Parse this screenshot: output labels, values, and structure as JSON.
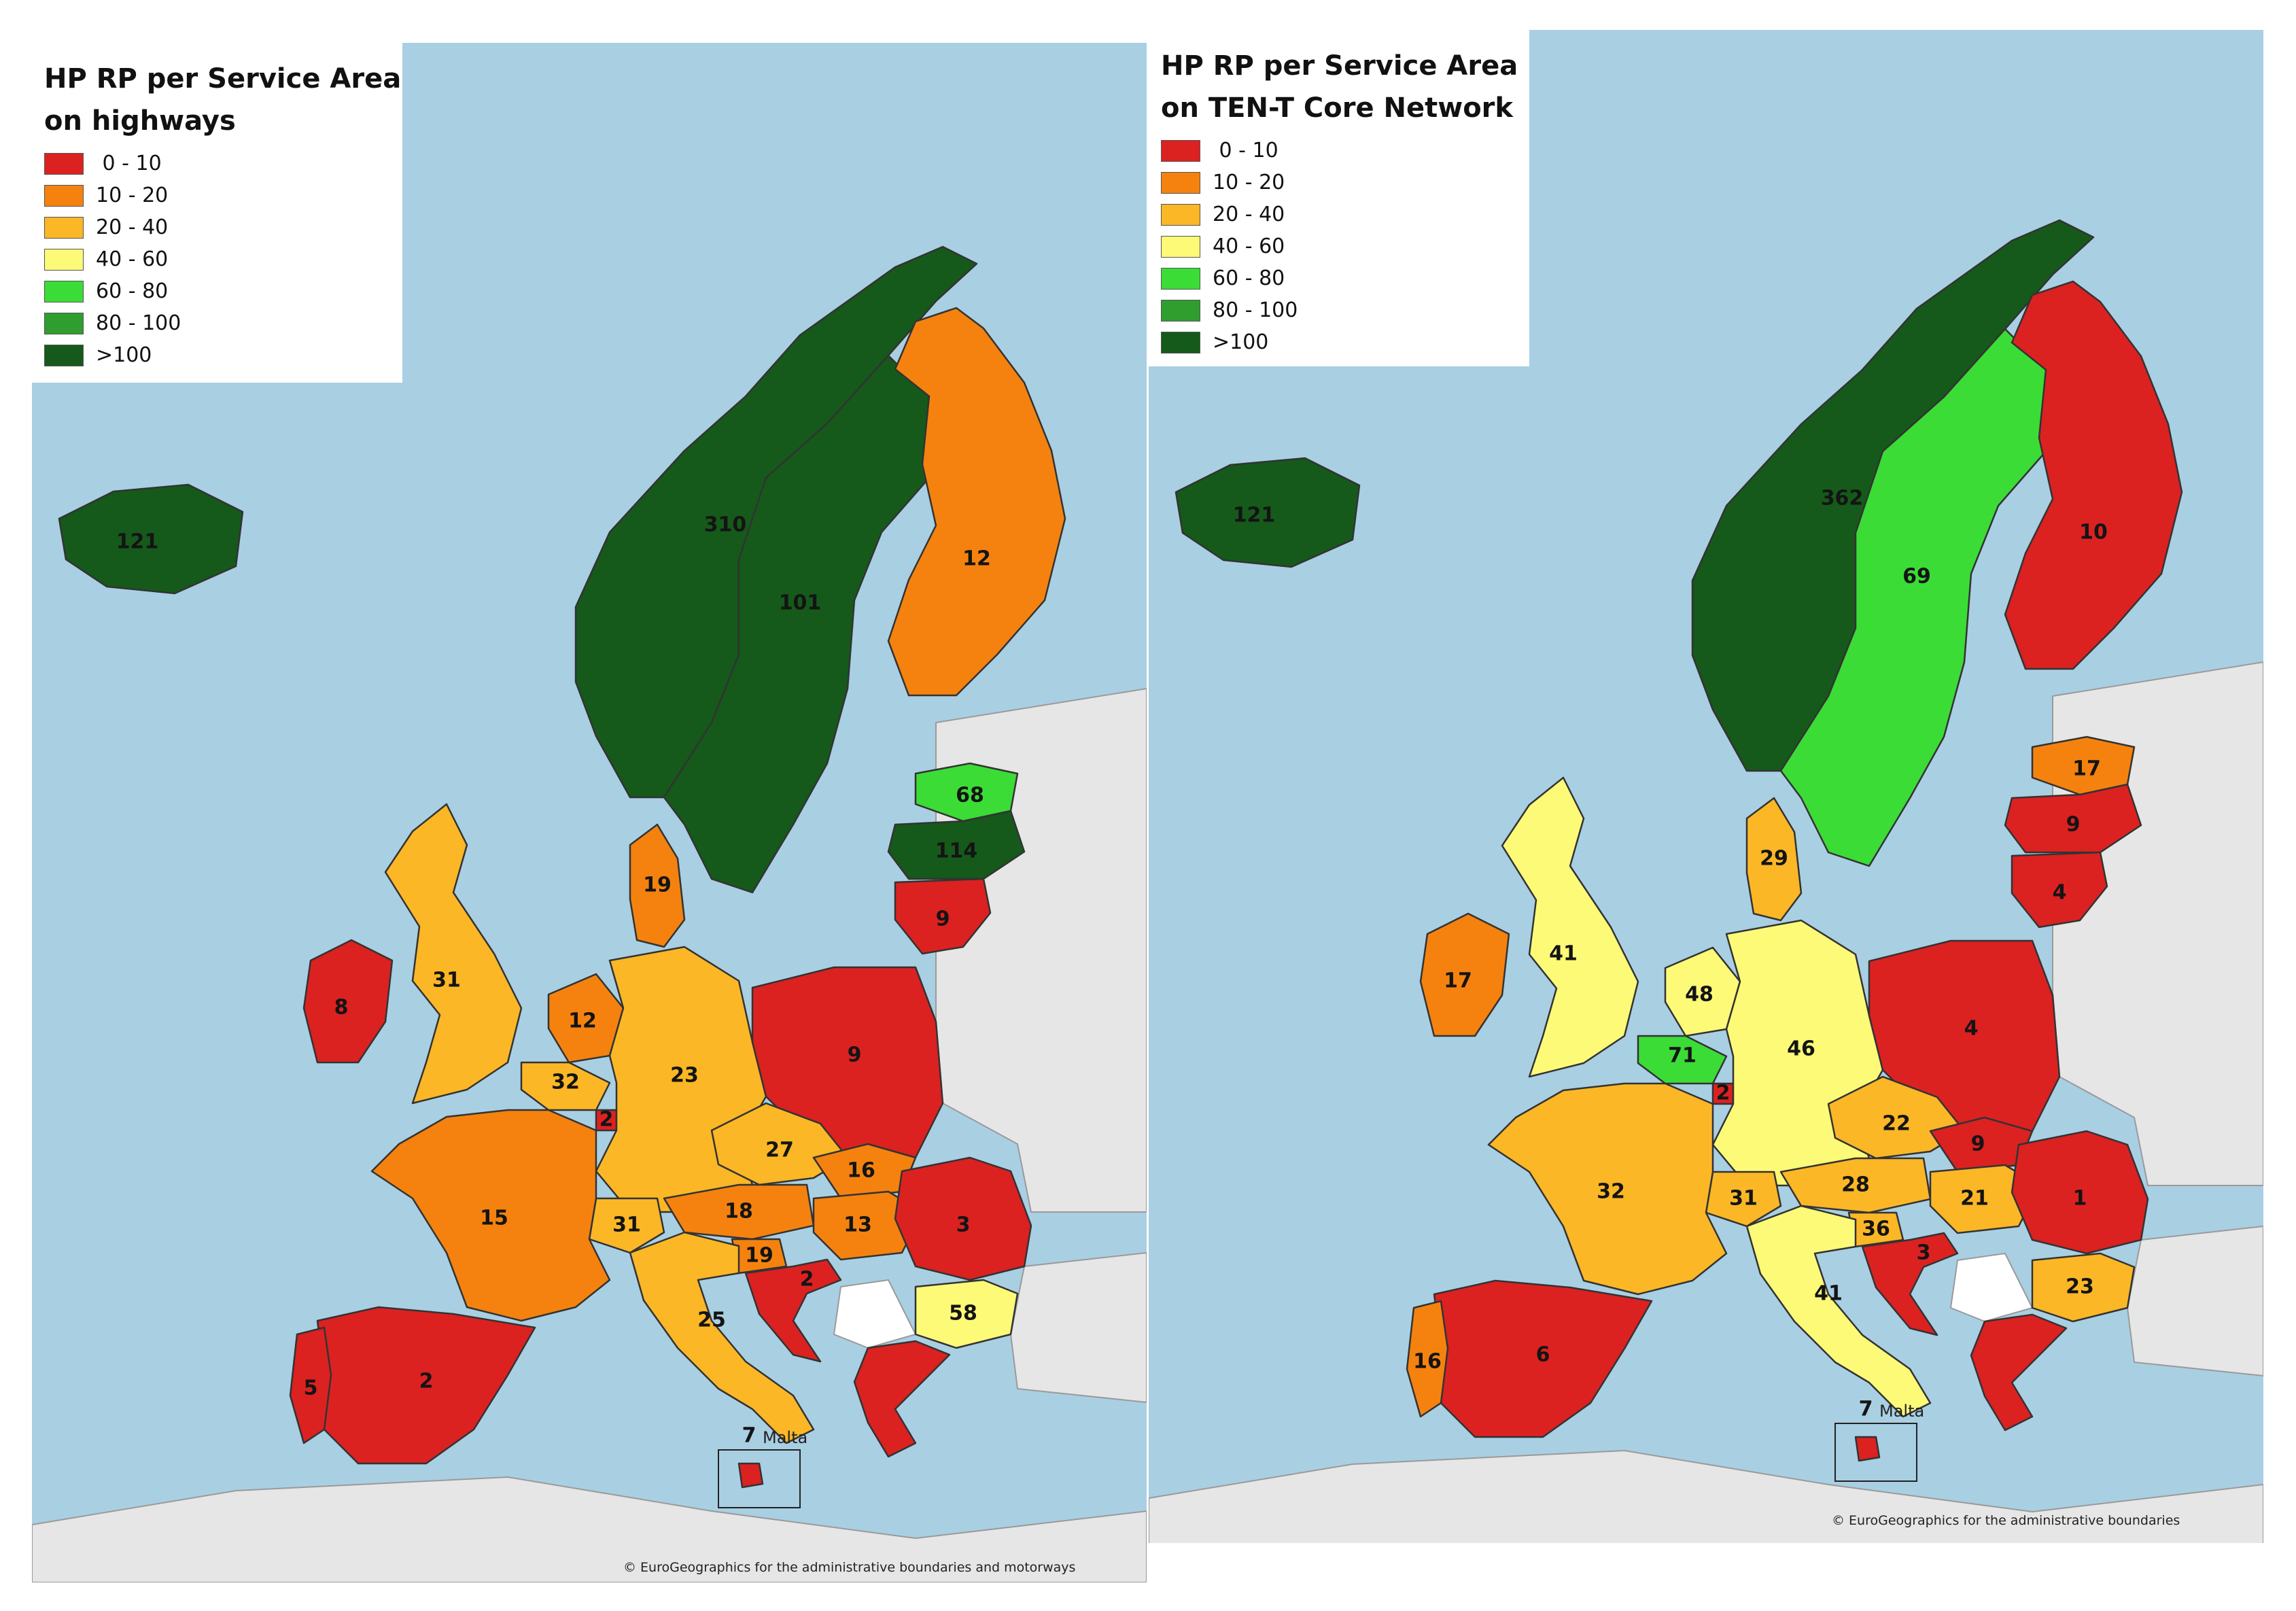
{
  "colors": {
    "c0_10": "#dc2121",
    "c10_20": "#f5820f",
    "c20_40": "#fbb726",
    "c40_60": "#fdfa78",
    "c60_80": "#3bdc36",
    "c80_100": "#2f9e2f",
    "c100": "#155a1a",
    "sea": "#a9cfe3",
    "nodata": "#ffffff",
    "other_land": "#ffffff"
  },
  "maps": [
    {
      "id": "highways",
      "legend": {
        "title_line1": "HP RP per Service Area",
        "title_line2": "on highways",
        "items": [
          {
            "label": " 0 - 10",
            "color": "#dc2121"
          },
          {
            "label": "10 - 20",
            "color": "#f5820f"
          },
          {
            "label": "20 - 40",
            "color": "#fbb726"
          },
          {
            "label": "40 - 60",
            "color": "#fdfa78"
          },
          {
            "label": "60 - 80",
            "color": "#3bdc36"
          },
          {
            "label": "80 - 100",
            "color": "#2f9e2f"
          },
          {
            "label": ">100",
            "color": "#155a1a"
          }
        ]
      },
      "countries": {
        "iceland": {
          "value": "121",
          "color": "#155a1a"
        },
        "norway": {
          "value": "310",
          "color": "#155a1a"
        },
        "sweden": {
          "value": "101",
          "color": "#155a1a"
        },
        "finland": {
          "value": "12",
          "color": "#f5820f"
        },
        "estonia": {
          "value": "68",
          "color": "#3bdc36"
        },
        "latvia": {
          "value": "114",
          "color": "#155a1a"
        },
        "lithuania": {
          "value": "9",
          "color": "#dc2121"
        },
        "denmark": {
          "value": "19",
          "color": "#f5820f"
        },
        "uk": {
          "value": "31",
          "color": "#fbb726"
        },
        "ireland": {
          "value": "8",
          "color": "#dc2121"
        },
        "netherlands": {
          "value": "12",
          "color": "#f5820f"
        },
        "belgium": {
          "value": "32",
          "color": "#fbb726"
        },
        "luxembourg": {
          "value": "2",
          "color": "#dc2121"
        },
        "germany": {
          "value": "23",
          "color": "#fbb726"
        },
        "poland": {
          "value": "9",
          "color": "#dc2121"
        },
        "czechia": {
          "value": "27",
          "color": "#fbb726"
        },
        "slovakia": {
          "value": "16",
          "color": "#f5820f"
        },
        "austria": {
          "value": "18",
          "color": "#f5820f"
        },
        "hungary": {
          "value": "13",
          "color": "#f5820f"
        },
        "slovenia": {
          "value": "19",
          "color": "#f5820f"
        },
        "croatia": {
          "value": "2",
          "color": "#dc2121"
        },
        "romania": {
          "value": "3",
          "color": "#dc2121"
        },
        "bulgaria": {
          "value": "58",
          "color": "#fdfa78"
        },
        "france": {
          "value": "15",
          "color": "#f5820f"
        },
        "switzerland": {
          "value": "31",
          "color": "#fbb726"
        },
        "italy": {
          "value": "25",
          "color": "#fbb726"
        },
        "spain": {
          "value": "2",
          "color": "#dc2121"
        },
        "portugal": {
          "value": "5",
          "color": "#dc2121"
        },
        "greece": {
          "value": "",
          "color": "#dc2121"
        },
        "malta": {
          "value": "7",
          "color": "#dc2121"
        }
      },
      "malta_label": "Malta",
      "copyright": "© EuroGeographics for the administrative boundaries and motorways"
    },
    {
      "id": "tent_core",
      "legend": {
        "title_line1": "HP RP per Service Area",
        "title_line2": "on TEN-T Core Network",
        "items": [
          {
            "label": " 0 - 10",
            "color": "#dc2121"
          },
          {
            "label": "10 - 20",
            "color": "#f5820f"
          },
          {
            "label": "20 - 40",
            "color": "#fbb726"
          },
          {
            "label": "40 - 60",
            "color": "#fdfa78"
          },
          {
            "label": "60 - 80",
            "color": "#3bdc36"
          },
          {
            "label": "80 - 100",
            "color": "#2f9e2f"
          },
          {
            "label": ">100",
            "color": "#155a1a"
          }
        ]
      },
      "countries": {
        "iceland": {
          "value": "121",
          "color": "#155a1a"
        },
        "norway": {
          "value": "362",
          "color": "#155a1a"
        },
        "sweden": {
          "value": "69",
          "color": "#3bdc36"
        },
        "finland": {
          "value": "10",
          "color": "#dc2121"
        },
        "estonia": {
          "value": "17",
          "color": "#f5820f"
        },
        "latvia": {
          "value": "9",
          "color": "#dc2121"
        },
        "lithuania": {
          "value": "4",
          "color": "#dc2121"
        },
        "denmark": {
          "value": "29",
          "color": "#fbb726"
        },
        "uk": {
          "value": "41",
          "color": "#fdfa78"
        },
        "ireland": {
          "value": "17",
          "color": "#f5820f"
        },
        "netherlands": {
          "value": "48",
          "color": "#fdfa78"
        },
        "belgium": {
          "value": "71",
          "color": "#3bdc36"
        },
        "luxembourg": {
          "value": "2",
          "color": "#dc2121"
        },
        "germany": {
          "value": "46",
          "color": "#fdfa78"
        },
        "poland": {
          "value": "4",
          "color": "#dc2121"
        },
        "czechia": {
          "value": "22",
          "color": "#fbb726"
        },
        "slovakia": {
          "value": "9",
          "color": "#dc2121"
        },
        "austria": {
          "value": "28",
          "color": "#fbb726"
        },
        "hungary": {
          "value": "21",
          "color": "#fbb726"
        },
        "slovenia": {
          "value": "36",
          "color": "#fbb726"
        },
        "croatia": {
          "value": "3",
          "color": "#dc2121"
        },
        "romania": {
          "value": "1",
          "color": "#dc2121"
        },
        "bulgaria": {
          "value": "23",
          "color": "#fbb726"
        },
        "france": {
          "value": "32",
          "color": "#fbb726"
        },
        "switzerland": {
          "value": "31",
          "color": "#fbb726"
        },
        "italy": {
          "value": "41",
          "color": "#fdfa78"
        },
        "spain": {
          "value": "6",
          "color": "#dc2121"
        },
        "portugal": {
          "value": "16",
          "color": "#f5820f"
        },
        "greece": {
          "value": "",
          "color": "#dc2121"
        },
        "malta": {
          "value": "7",
          "color": "#dc2121"
        }
      },
      "malta_label": "Malta",
      "copyright": "© EuroGeographics for the administrative boundaries"
    }
  ]
}
